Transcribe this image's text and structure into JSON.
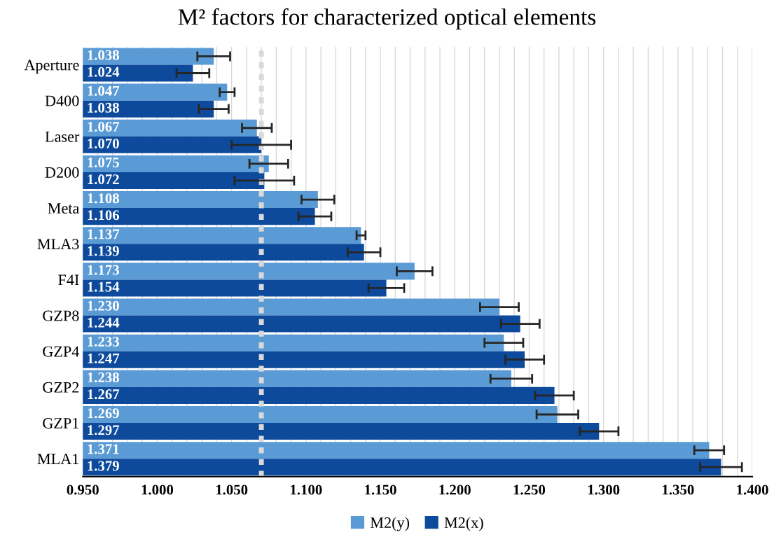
{
  "chart_data": {
    "type": "bar",
    "orientation": "horizontal",
    "title": "M² factors for characterized optical elements",
    "categories": [
      "Aperture",
      "D400",
      "Laser",
      "D200",
      "Meta",
      "MLA3",
      "F4I",
      "GZP8",
      "GZP4",
      "GZP2",
      "GZP1",
      "MLA1"
    ],
    "series": [
      {
        "name": "M2(y)",
        "color": "#5b9bd5",
        "values": [
          1.038,
          1.047,
          1.067,
          1.075,
          1.108,
          1.137,
          1.173,
          1.23,
          1.233,
          1.238,
          1.269,
          1.371
        ],
        "value_labels": [
          "1.038",
          "1.047",
          "1.067",
          "1.075",
          "1.108",
          "1.137",
          "1.173",
          "1.230",
          "1.233",
          "1.238",
          "1.269",
          "1.371"
        ],
        "errors": [
          0.011,
          0.005,
          0.01,
          0.013,
          0.011,
          0.003,
          0.012,
          0.013,
          0.013,
          0.014,
          0.014,
          0.01
        ]
      },
      {
        "name": "M2(x)",
        "color": "#0d4a9c",
        "values": [
          1.024,
          1.038,
          1.07,
          1.072,
          1.106,
          1.139,
          1.154,
          1.244,
          1.247,
          1.267,
          1.297,
          1.379
        ],
        "value_labels": [
          "1.024",
          "1.038",
          "1.070",
          "1.072",
          "1.106",
          "1.139",
          "1.154",
          "1.244",
          "1.247",
          "1.267",
          "1.297",
          "1.379"
        ],
        "errors": [
          0.011,
          0.01,
          0.02,
          0.02,
          0.011,
          0.011,
          0.012,
          0.013,
          0.013,
          0.013,
          0.013,
          0.014
        ]
      }
    ],
    "xlim": [
      0.95,
      1.4
    ],
    "xticks": [
      {
        "value": 0.95,
        "label": "0.950"
      },
      {
        "value": 0.96,
        "label": null
      },
      {
        "value": 0.97,
        "label": null
      },
      {
        "value": 0.98,
        "label": null
      },
      {
        "value": 0.99,
        "label": null
      },
      {
        "value": 1.0,
        "label": "1.000"
      },
      {
        "value": 1.01,
        "label": null
      },
      {
        "value": 1.02,
        "label": null
      },
      {
        "value": 1.03,
        "label": null
      },
      {
        "value": 1.04,
        "label": null
      },
      {
        "value": 1.05,
        "label": "1.050"
      },
      {
        "value": 1.06,
        "label": null
      },
      {
        "value": 1.07,
        "label": null
      },
      {
        "value": 1.08,
        "label": null
      },
      {
        "value": 1.09,
        "label": null
      },
      {
        "value": 1.1,
        "label": "1.100"
      },
      {
        "value": 1.11,
        "label": null
      },
      {
        "value": 1.12,
        "label": null
      },
      {
        "value": 1.13,
        "label": null
      },
      {
        "value": 1.14,
        "label": null
      },
      {
        "value": 1.15,
        "label": "1.150"
      },
      {
        "value": 1.16,
        "label": null
      },
      {
        "value": 1.17,
        "label": null
      },
      {
        "value": 1.18,
        "label": null
      },
      {
        "value": 1.19,
        "label": null
      },
      {
        "value": 1.2,
        "label": "1.200"
      },
      {
        "value": 1.21,
        "label": null
      },
      {
        "value": 1.22,
        "label": null
      },
      {
        "value": 1.23,
        "label": null
      },
      {
        "value": 1.24,
        "label": null
      },
      {
        "value": 1.25,
        "label": "1.250"
      },
      {
        "value": 1.26,
        "label": null
      },
      {
        "value": 1.27,
        "label": null
      },
      {
        "value": 1.28,
        "label": null
      },
      {
        "value": 1.29,
        "label": null
      },
      {
        "value": 1.3,
        "label": "1.300"
      },
      {
        "value": 1.31,
        "label": null
      },
      {
        "value": 1.32,
        "label": null
      },
      {
        "value": 1.33,
        "label": null
      },
      {
        "value": 1.34,
        "label": null
      },
      {
        "value": 1.35,
        "label": "1.350"
      },
      {
        "value": 1.36,
        "label": null
      },
      {
        "value": 1.37,
        "label": null
      },
      {
        "value": 1.38,
        "label": null
      },
      {
        "value": 1.39,
        "label": null
      },
      {
        "value": 1.4,
        "label": "1.400"
      }
    ],
    "ref_lines": [
      {
        "axis": "x",
        "value": 1.07,
        "color": "#d9d9d9",
        "line_style": "dotted"
      }
    ],
    "grid": "x",
    "legend": "bottom"
  }
}
